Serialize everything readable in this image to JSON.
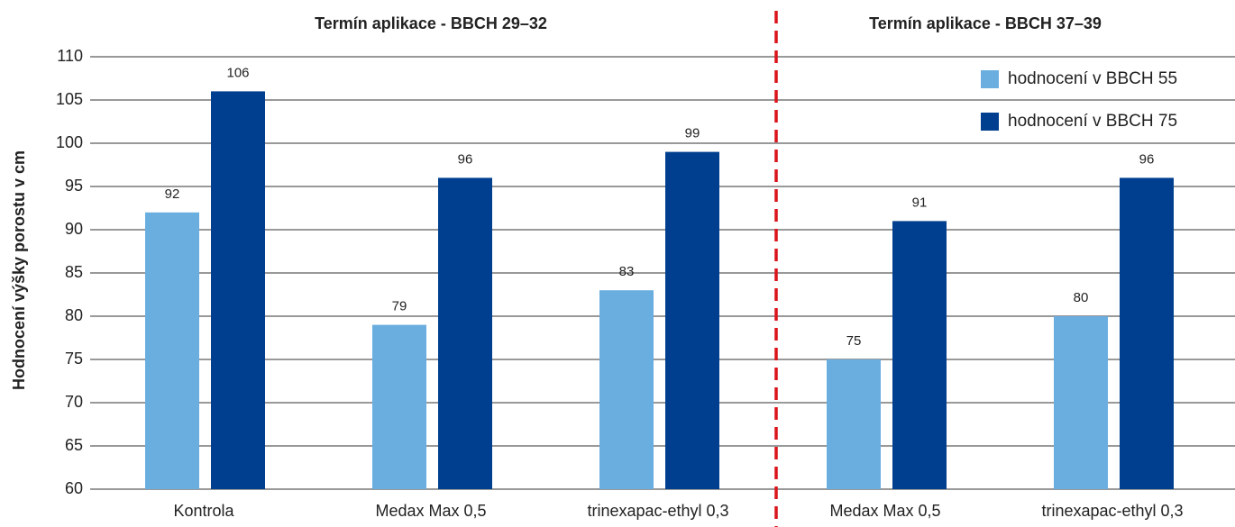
{
  "chart_data": {
    "type": "bar",
    "y_label": "Hodnocení výšky porostu v cm",
    "annotations": [
      "Termín aplikace - BBCH 29–32",
      "Termín aplikace - BBCH 37–39"
    ],
    "categories": [
      "Kontrola",
      "Medax Max 0,5",
      "trinexapac-ethyl 0,3",
      "Medax Max 0,5",
      "trinexapac-ethyl 0,3"
    ],
    "series": [
      {
        "name": "hodnocení v BBCH 55",
        "color": "#6aaee0",
        "values": [
          92,
          79,
          83,
          75,
          80
        ]
      },
      {
        "name": "hodnocení v BBCH 75",
        "color": "#003f8f",
        "values": [
          106,
          96,
          99,
          91,
          96
        ]
      }
    ],
    "ylim": [
      60,
      110
    ],
    "yticks": [
      60,
      65,
      70,
      75,
      80,
      85,
      90,
      95,
      100,
      105,
      110
    ],
    "grid": true,
    "legend": "top-right"
  }
}
